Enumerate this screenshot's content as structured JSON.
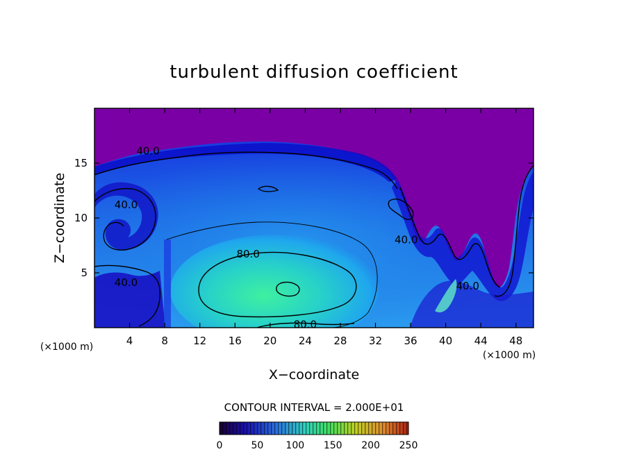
{
  "chart_data": {
    "type": "heatmap",
    "title": "turbulent diffusion coefficient",
    "xlabel": "X−coordinate",
    "ylabel": "Z−coordinate",
    "x_unit": "(×1000 m)",
    "y_unit": "(×1000 m)",
    "xlim": [
      0,
      50
    ],
    "ylim": [
      0,
      20
    ],
    "x_ticks": [
      4,
      8,
      12,
      16,
      20,
      24,
      28,
      32,
      36,
      40,
      44,
      48
    ],
    "y_ticks": [
      5,
      10,
      15
    ],
    "contour_interval_text": "CONTOUR INTERVAL = 2.000E+01",
    "contour_labels": [
      {
        "text": "40.0",
        "x": 6.1,
        "y": 16.1
      },
      {
        "text": "40.0",
        "x": 3.6,
        "y": 11.2
      },
      {
        "text": "80.0",
        "x": 17.5,
        "y": 6.7
      },
      {
        "text": "80.0",
        "x": 24.0,
        "y": 0.3
      },
      {
        "text": "40.0",
        "x": 3.6,
        "y": 4.1
      },
      {
        "text": "40.0",
        "x": 35.5,
        "y": 8.0
      },
      {
        "text": "40.0",
        "x": 42.5,
        "y": 3.8
      }
    ],
    "colorbar": {
      "min": 0,
      "max": 250,
      "ticks": [
        0,
        50,
        100,
        150,
        200,
        250
      ],
      "colors": [
        "#1a0030",
        "#1a10b0",
        "#2a70e0",
        "#30d0c0",
        "#40e060",
        "#c0d020",
        "#e09030",
        "#b02010"
      ]
    },
    "colors": {
      "background_high": "#7a00a6",
      "field_low": "#1b1cd8",
      "field_mid": "#1f7fe8",
      "field_high": "#2ee6a6",
      "contour": "#000000"
    }
  }
}
